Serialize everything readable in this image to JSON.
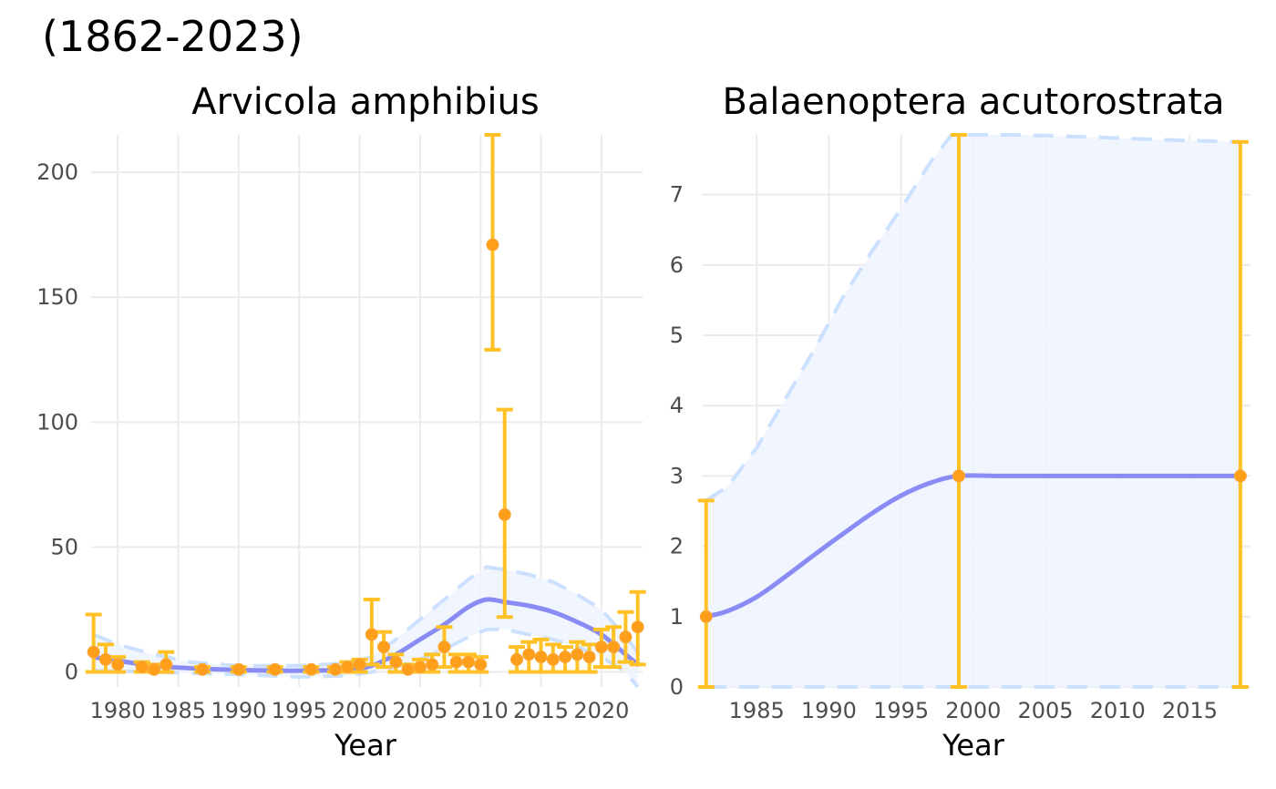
{
  "title": "(1862-2023)",
  "colors": {
    "trend": "#8a8cf6",
    "ci_line": "#cce0ff",
    "ci_fill": "#eef5fe",
    "error_bar": "#ffc125",
    "point": "#ff9e1b",
    "grid": "#ebebeb"
  },
  "chart_data": [
    {
      "type": "line",
      "title": "Arvicola amphibius",
      "xlabel": "Year",
      "ylabel": "",
      "xlim": [
        1977.8,
        2023.4
      ],
      "ylim": [
        -6,
        215
      ],
      "xticks": [
        1980,
        1985,
        1990,
        1995,
        2000,
        2005,
        2010,
        2015,
        2020
      ],
      "xtick_labels": [
        "1980",
        "1985",
        "1990",
        "1995",
        "2000",
        "2005",
        "2010",
        "2015",
        "2020"
      ],
      "yticks": [
        0,
        50,
        100,
        150,
        200
      ],
      "ytick_labels": [
        "0",
        "50",
        "100",
        "150",
        "200"
      ],
      "grid": true,
      "trend": {
        "x": [
          1978,
          1980,
          1983,
          1986,
          1990,
          1995,
          1999,
          2001,
          2003,
          2005,
          2007,
          2009,
          2010.5,
          2012,
          2014,
          2016,
          2018,
          2020,
          2022,
          2023
        ],
        "y": [
          6,
          4.5,
          2.5,
          1.5,
          0.8,
          0.5,
          1,
          2.5,
          7,
          13,
          19,
          26,
          29,
          28,
          26.5,
          24,
          20,
          15,
          7,
          3
        ]
      },
      "ci_upper": {
        "x": [
          1978,
          1980,
          1983,
          1986,
          1990,
          1995,
          1999,
          2001,
          2003,
          2005,
          2007,
          2009,
          2010.5,
          2012,
          2014,
          2016,
          2018,
          2020,
          2022,
          2023
        ],
        "y": [
          15,
          11,
          7,
          4,
          2.5,
          2.5,
          3.5,
          6,
          13,
          21,
          29,
          37,
          42,
          41,
          39,
          36,
          31,
          25,
          14,
          8
        ]
      },
      "ci_lower": {
        "x": [
          1978,
          1980,
          1983,
          1986,
          1990,
          1995,
          1999,
          2001,
          2003,
          2005,
          2007,
          2009,
          2010.5,
          2012,
          2014,
          2016,
          2018,
          2020,
          2022,
          2023
        ],
        "y": [
          0.5,
          0.3,
          0,
          -0.5,
          -1,
          -2,
          -1.5,
          0,
          2,
          5,
          9,
          14,
          17,
          17,
          15,
          13,
          10,
          6,
          0,
          -6
        ]
      },
      "points": {
        "x": [
          1978,
          1979,
          1980,
          1982,
          1983,
          1984,
          1987,
          1990,
          1993,
          1996,
          1998,
          1999,
          2000,
          2001,
          2002,
          2003,
          2004,
          2005,
          2006,
          2007,
          2008,
          2009,
          2010,
          2011,
          2012,
          2013,
          2014,
          2015,
          2016,
          2017,
          2018,
          2019,
          2020,
          2021,
          2022,
          2023
        ],
        "y": [
          8,
          5,
          3,
          2,
          1,
          3,
          1,
          1,
          1,
          1,
          1,
          2,
          3,
          15,
          10,
          4,
          1,
          2,
          3,
          10,
          4,
          4,
          3,
          171,
          63,
          5,
          7,
          6,
          5,
          6,
          7,
          6,
          10,
          10,
          14,
          18
        ],
        "lower": [
          0,
          0,
          0,
          0,
          0,
          0,
          0,
          0,
          0,
          0,
          0,
          0,
          0,
          3,
          2,
          0,
          0,
          0,
          0,
          2,
          0,
          0,
          0,
          129,
          22,
          0,
          0,
          0,
          0,
          0,
          0,
          0,
          2,
          2,
          4,
          3
        ],
        "upper": [
          23,
          11,
          6,
          4,
          3,
          8,
          2,
          2,
          2,
          2,
          2,
          4,
          5,
          29,
          16,
          7,
          3,
          5,
          7,
          18,
          7,
          7,
          6,
          215,
          105,
          10,
          12,
          13,
          11,
          10,
          12,
          11,
          17,
          18,
          24,
          32
        ]
      }
    },
    {
      "type": "line",
      "title": "Balaenoptera acutorostrata",
      "xlabel": "Year",
      "ylabel": "",
      "xlim": [
        1981.2,
        2019.2
      ],
      "ylim": [
        0,
        7.85
      ],
      "xticks": [
        1985,
        1990,
        1995,
        2000,
        2005,
        2010,
        2015
      ],
      "xtick_labels": [
        "1985",
        "1990",
        "1995",
        "2000",
        "2005",
        "2010",
        "2015"
      ],
      "yticks": [
        0,
        1,
        2,
        3,
        4,
        5,
        6,
        7
      ],
      "ytick_labels": [
        "0",
        "1",
        "2",
        "3",
        "4",
        "5",
        "6",
        "7"
      ],
      "grid": true,
      "trend": {
        "x": [
          1981.5,
          1983,
          1985,
          1987,
          1989,
          1991,
          1993,
          1995,
          1997,
          1999,
          2002,
          2006,
          2010,
          2014,
          2018.5
        ],
        "y": [
          1,
          1.08,
          1.28,
          1.57,
          1.88,
          2.18,
          2.47,
          2.72,
          2.9,
          3,
          3,
          3,
          3,
          3,
          3
        ]
      },
      "ci_upper": {
        "x": [
          1981.5,
          1983,
          1985,
          1987,
          1989,
          1991,
          1993,
          1995,
          1997,
          1998.5,
          1999.5,
          2003,
          2008,
          2013,
          2018.5
        ],
        "y": [
          2.65,
          2.85,
          3.4,
          4.1,
          4.8,
          5.55,
          6.2,
          6.8,
          7.45,
          7.85,
          7.85,
          7.85,
          7.82,
          7.78,
          7.75
        ]
      },
      "ci_lower": {
        "x": [
          1981.5,
          2018.5
        ],
        "y": [
          0,
          0
        ]
      },
      "points": {
        "x": [
          1981.5,
          1999,
          2018.5
        ],
        "y": [
          1,
          3,
          3
        ],
        "lower": [
          0,
          0,
          0
        ],
        "upper": [
          2.65,
          7.85,
          7.75
        ]
      }
    }
  ]
}
